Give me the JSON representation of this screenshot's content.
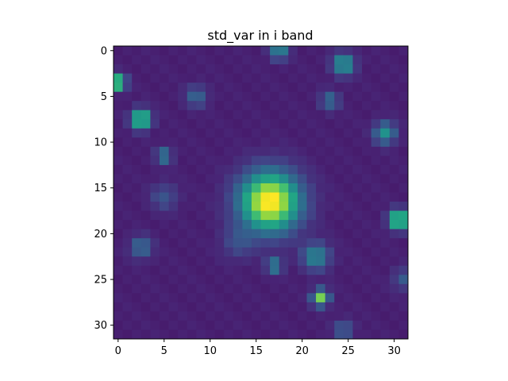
{
  "chart_data": {
    "type": "heatmap",
    "title": "std_var in i band",
    "xlabel": "",
    "ylabel": "",
    "xlim": [
      -0.5,
      31.5
    ],
    "ylim": [
      31.5,
      -0.5
    ],
    "x_ticks": [
      0,
      5,
      10,
      15,
      20,
      25,
      30
    ],
    "y_ticks": [
      0,
      5,
      10,
      15,
      20,
      25,
      30
    ],
    "grid": false,
    "colormap": "viridis",
    "shape": [
      32,
      32
    ],
    "background_level": 0.08,
    "peaks": [
      {
        "x": 16.5,
        "y": 16.5,
        "level": 1.0,
        "spread": 2.2
      },
      {
        "x": 0,
        "y": 3.5,
        "level": 0.85,
        "spread": 0.55
      },
      {
        "x": 2.5,
        "y": 7.5,
        "level": 0.8,
        "spread": 0.7
      },
      {
        "x": 30.5,
        "y": 18.5,
        "level": 0.85,
        "spread": 0.7
      },
      {
        "x": 22,
        "y": 27,
        "level": 0.75,
        "spread": 0.6
      },
      {
        "x": 24.5,
        "y": 1.5,
        "level": 0.5,
        "spread": 0.8
      },
      {
        "x": 29,
        "y": 9,
        "level": 0.45,
        "spread": 0.8
      },
      {
        "x": 21.5,
        "y": 22.5,
        "level": 0.4,
        "spread": 1.0
      },
      {
        "x": 17,
        "y": 23.5,
        "level": 0.38,
        "spread": 0.6
      },
      {
        "x": 5,
        "y": 11.5,
        "level": 0.35,
        "spread": 0.6
      },
      {
        "x": 17.5,
        "y": 0,
        "level": 0.4,
        "spread": 0.7
      },
      {
        "x": 2.5,
        "y": 21.5,
        "level": 0.3,
        "spread": 0.8
      },
      {
        "x": 8.5,
        "y": 5,
        "level": 0.25,
        "spread": 0.8
      },
      {
        "x": 23,
        "y": 5.5,
        "level": 0.28,
        "spread": 0.7
      },
      {
        "x": 24.5,
        "y": 30.5,
        "level": 0.25,
        "spread": 0.7
      },
      {
        "x": 31,
        "y": 25,
        "level": 0.2,
        "spread": 0.8
      },
      {
        "x": 5,
        "y": 16,
        "level": 0.18,
        "spread": 1.0
      },
      {
        "x": 13,
        "y": 21,
        "level": 0.15,
        "spread": 1.2
      }
    ]
  }
}
